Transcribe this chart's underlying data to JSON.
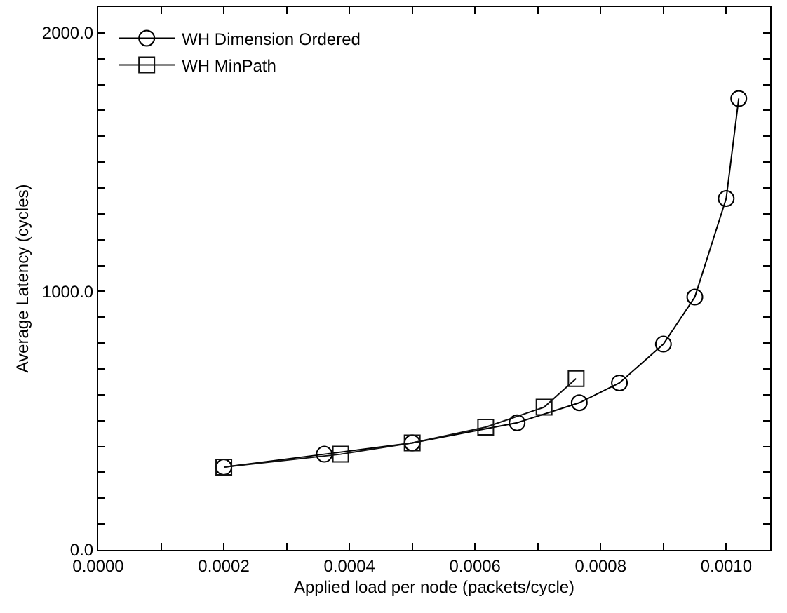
{
  "chart_data": {
    "type": "line",
    "xlabel": "Applied load per node (packets/cycle)",
    "ylabel": "Average Latency (cycles)",
    "xlim": [
      0,
      0.00107
    ],
    "ylim": [
      0,
      2100
    ],
    "xticks": [
      {
        "value": 0,
        "label": "0.0000"
      },
      {
        "value": 0.0001,
        "label": null
      },
      {
        "value": 0.0002,
        "label": "0.0002"
      },
      {
        "value": 0.0003,
        "label": null
      },
      {
        "value": 0.0004,
        "label": "0.0004"
      },
      {
        "value": 0.0005,
        "label": null
      },
      {
        "value": 0.0006,
        "label": "0.0006"
      },
      {
        "value": 0.0007,
        "label": null
      },
      {
        "value": 0.0008,
        "label": "0.0008"
      },
      {
        "value": 0.0009,
        "label": null
      },
      {
        "value": 0.001,
        "label": "0.0010"
      }
    ],
    "yticks": [
      {
        "value": 0,
        "label": "0.0"
      },
      {
        "value": 100,
        "label": null
      },
      {
        "value": 200,
        "label": null
      },
      {
        "value": 300,
        "label": null
      },
      {
        "value": 400,
        "label": null
      },
      {
        "value": 500,
        "label": null
      },
      {
        "value": 600,
        "label": null
      },
      {
        "value": 700,
        "label": null
      },
      {
        "value": 800,
        "label": null
      },
      {
        "value": 900,
        "label": null
      },
      {
        "value": 1000,
        "label": "1000.0"
      },
      {
        "value": 1100,
        "label": null
      },
      {
        "value": 1200,
        "label": null
      },
      {
        "value": 1300,
        "label": null
      },
      {
        "value": 1400,
        "label": null
      },
      {
        "value": 1500,
        "label": null
      },
      {
        "value": 1600,
        "label": null
      },
      {
        "value": 1700,
        "label": null
      },
      {
        "value": 1800,
        "label": null
      },
      {
        "value": 1900,
        "label": null
      },
      {
        "value": 2000,
        "label": "2000.0"
      }
    ],
    "legend": "top left",
    "line_style": "solid",
    "series": [
      {
        "name": "WH Dimension Ordered",
        "color": "#000000",
        "marker": "circle",
        "x": [
          0.0002,
          0.00036,
          0.0005,
          0.000667,
          0.000766,
          0.00083,
          0.0009,
          0.00095,
          0.001,
          0.00102
        ],
        "values": [
          320,
          370,
          414,
          492,
          569,
          646,
          796,
          978,
          1359,
          1746
        ]
      },
      {
        "name": "WH MinPath",
        "color": "#111111",
        "marker": "square",
        "x": [
          0.0002,
          0.000386,
          0.0005,
          0.000617,
          0.00071,
          0.000761
        ],
        "values": [
          320,
          370,
          414,
          475,
          552,
          663
        ]
      }
    ]
  }
}
